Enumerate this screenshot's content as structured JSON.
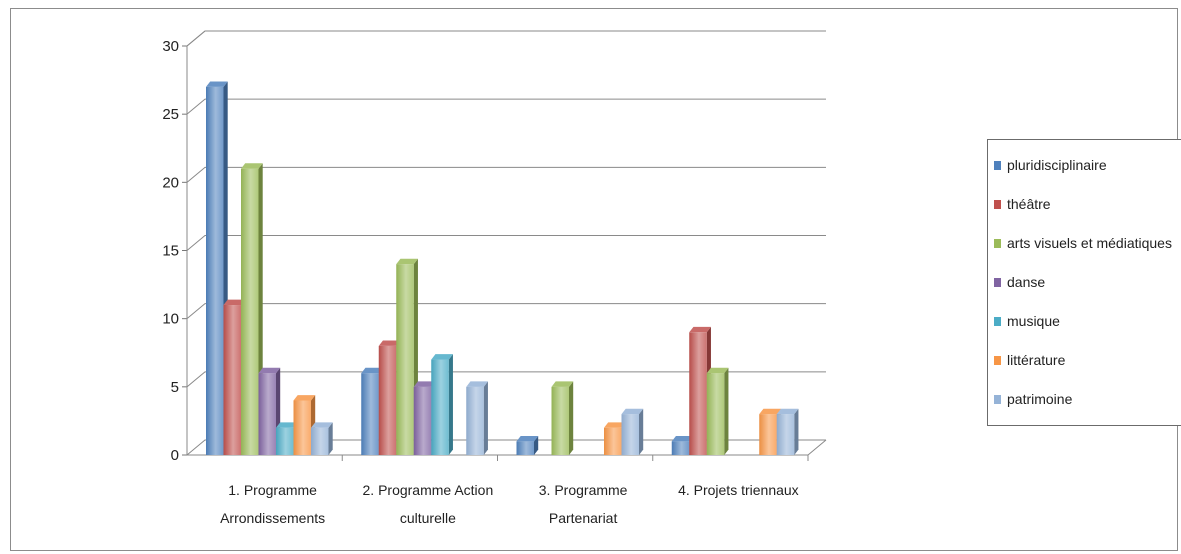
{
  "chart_data": {
    "type": "bar",
    "categories": [
      [
        "1. Programme",
        "Arrondissements"
      ],
      [
        "2. Programme Action",
        "culturelle"
      ],
      [
        "3. Programme",
        "Partenariat"
      ],
      [
        "4. Projets triennaux"
      ]
    ],
    "series": [
      {
        "name": "pluridisciplinaire",
        "color": "#4f81bd",
        "values": [
          27,
          6,
          1,
          1
        ]
      },
      {
        "name": "théâtre",
        "color": "#c0504d",
        "values": [
          11,
          8,
          0,
          9
        ]
      },
      {
        "name": "arts visuels et médiatiques",
        "color": "#9bbb59",
        "values": [
          21,
          14,
          5,
          6
        ]
      },
      {
        "name": "danse",
        "color": "#8064a2",
        "values": [
          6,
          5,
          0,
          0
        ]
      },
      {
        "name": "musique",
        "color": "#4bacc6",
        "values": [
          2,
          7,
          0,
          0
        ]
      },
      {
        "name": "littérature",
        "color": "#f79646",
        "values": [
          4,
          0,
          2,
          3
        ]
      },
      {
        "name": "patrimoine",
        "color": "#95b3d7",
        "values": [
          2,
          5,
          3,
          3
        ]
      }
    ],
    "y_ticks": [
      "0",
      "5",
      "10",
      "15",
      "20",
      "25",
      "30"
    ],
    "ylim": [
      0,
      30
    ],
    "grid": true,
    "legend_position": "right",
    "title": "",
    "xlabel": "",
    "ylabel": ""
  }
}
